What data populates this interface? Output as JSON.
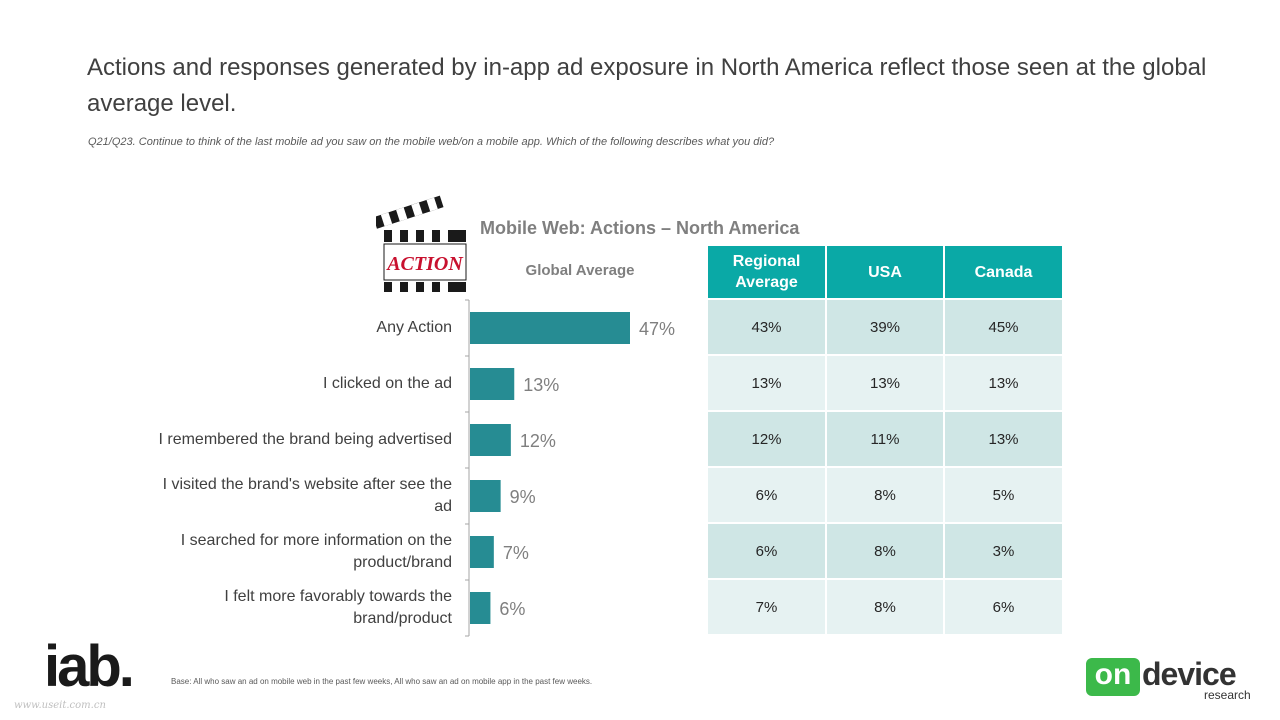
{
  "title": "Actions and responses generated by in-app ad exposure in North America reflect those seen at the global average level.",
  "question": "Q21/Q23. Continue to think of the last mobile ad you saw on the mobile web/on a mobile app. Which of the following describes what you did?",
  "clapperboard_text": "ACTION",
  "chart_title": "Mobile Web: Actions –  North America",
  "global_header": "Global Average",
  "table": {
    "headers": [
      "Regional Average",
      "USA",
      "Canada"
    ],
    "rows": [
      [
        "43%",
        "39%",
        "45%"
      ],
      [
        "13%",
        "13%",
        "13%"
      ],
      [
        "12%",
        "11%",
        "13%"
      ],
      [
        "6%",
        "8%",
        "5%"
      ],
      [
        "6%",
        "8%",
        "3%"
      ],
      [
        "7%",
        "8%",
        "6%"
      ]
    ]
  },
  "footer": "Base: All who saw an ad on mobile web in the past few weeks, All who saw an ad on mobile app in the past few weeks.",
  "logos": {
    "iab": "iab.",
    "ondevice_on": "on",
    "ondevice_device": "device",
    "ondevice_research": "research"
  },
  "watermark": "www.useit.com.cn",
  "colors": {
    "bar": "#268c93",
    "header": "#0aa9a6",
    "row_dark": "#cfe6e5",
    "row_light": "#e6f2f2"
  },
  "chart_data": {
    "type": "bar",
    "orientation": "horizontal",
    "title": "Mobile Web: Actions –  North America",
    "categories": [
      "Any Action",
      "I clicked on the ad",
      "I remembered the brand being advertised",
      "I visited the brand's website after see the ad",
      "I searched for more information on the product/brand",
      "I felt more favorably towards the brand/product"
    ],
    "series": [
      {
        "name": "Global Average",
        "values": [
          47,
          13,
          12,
          9,
          7,
          6
        ]
      }
    ],
    "value_labels": [
      "47%",
      "13%",
      "12%",
      "9%",
      "7%",
      "6%"
    ],
    "xlim": [
      0,
      100
    ],
    "grid": false,
    "legend": "none"
  }
}
